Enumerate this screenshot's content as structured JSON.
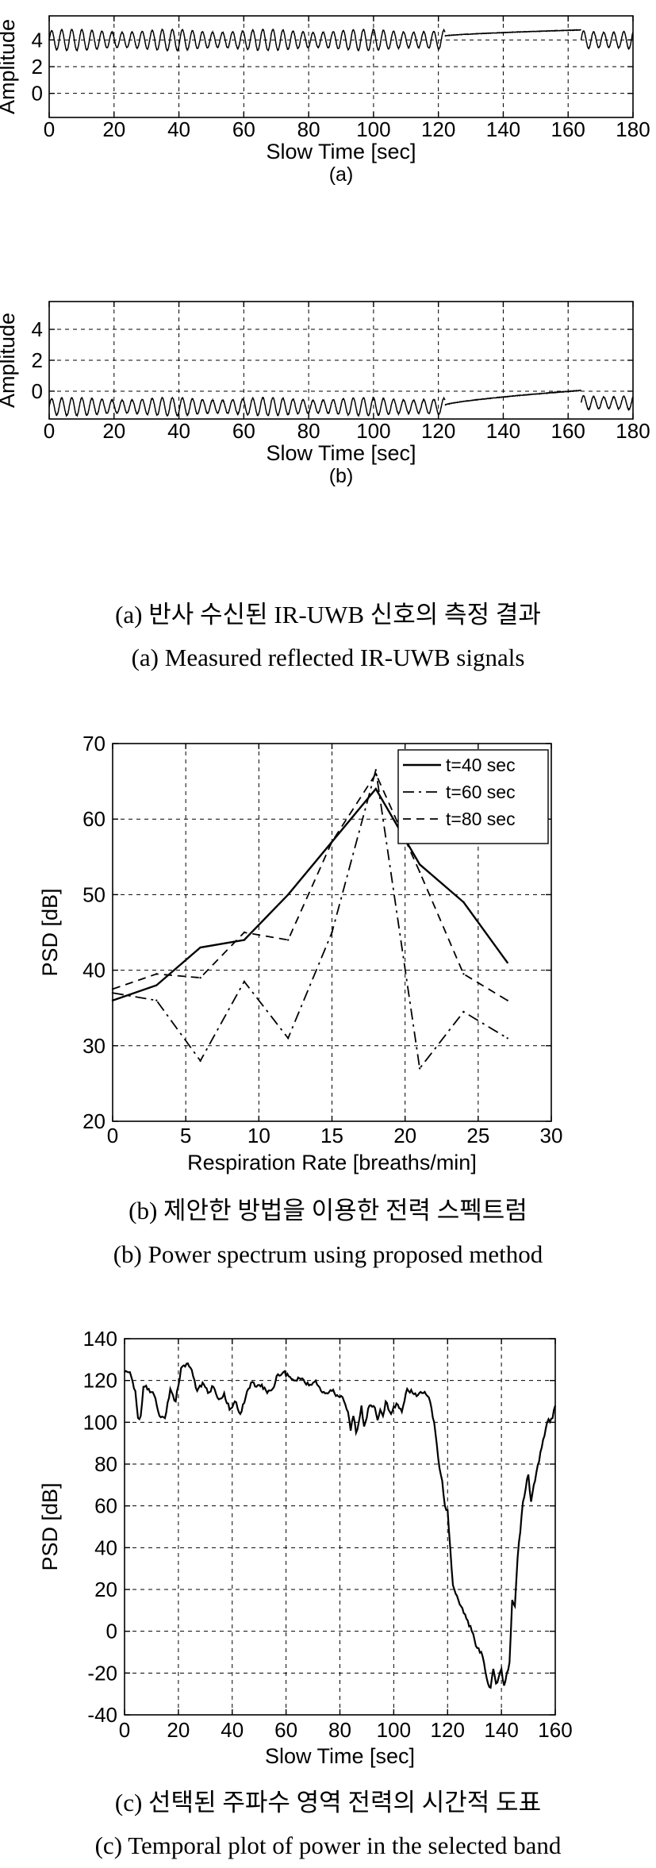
{
  "captions": {
    "a_ko": "(a) 반사 수신된 IR-UWB 신호의 측정 결과",
    "a_en": "(a) Measured reflected IR-UWB signals",
    "b_ko": "(b) 제안한 방법을 이용한 전력 스펙트럼",
    "b_en": "(b) Power spectrum using proposed method",
    "c_ko": "(c) 선택된 주파수 영역 전력의 시간적 도표",
    "c_en": "(c) Temporal plot of power in the selected band"
  },
  "chart_data": [
    {
      "id": "a",
      "type": "line",
      "sublabel": "(a)",
      "xlabel": "Slow Time [sec]",
      "ylabel": "Amplitude",
      "xlim": [
        0,
        180
      ],
      "ylim": [
        -1.8,
        5.8
      ],
      "xticks": [
        0,
        20,
        40,
        60,
        80,
        100,
        120,
        140,
        160,
        180
      ],
      "yticks": [
        0,
        2,
        4
      ],
      "grid": true,
      "series": [
        {
          "segments": [
            {
              "kind": "oscillation",
              "t_start": 0,
              "t_end": 122,
              "period": 3.1,
              "center": 4.0,
              "amplitude": 0.75
            },
            {
              "kind": "drift",
              "t_start": 122,
              "t_end": 164,
              "v_start": 4.3,
              "v_end": 4.75
            },
            {
              "kind": "oscillation",
              "t_start": 164,
              "t_end": 180,
              "period": 3.1,
              "center": 4.0,
              "amplitude": 0.75
            }
          ]
        }
      ]
    },
    {
      "id": "b",
      "type": "line",
      "sublabel": "(b)",
      "xlabel": "Slow Time [sec]",
      "ylabel": "Amplitude",
      "xlim": [
        0,
        180
      ],
      "ylim": [
        -1.8,
        5.8
      ],
      "xticks": [
        0,
        20,
        40,
        60,
        80,
        100,
        120,
        140,
        160,
        180
      ],
      "yticks": [
        0,
        2,
        4
      ],
      "grid": true,
      "series": [
        {
          "segments": [
            {
              "kind": "oscillation",
              "t_start": 0,
              "t_end": 122,
              "period": 3.1,
              "center": -1.0,
              "amplitude": 0.55
            },
            {
              "kind": "drift",
              "t_start": 122,
              "t_end": 164,
              "v_start": -0.9,
              "v_end": 0.05
            },
            {
              "kind": "oscillation",
              "t_start": 164,
              "t_end": 180,
              "period": 3.1,
              "center": -0.75,
              "amplitude": 0.5
            }
          ]
        }
      ]
    },
    {
      "id": "psd",
      "type": "line",
      "xlabel": "Respiration Rate [breaths/min]",
      "ylabel": "PSD [dB]",
      "xlim": [
        0,
        30
      ],
      "ylim": [
        20,
        70
      ],
      "xticks": [
        0,
        5,
        10,
        15,
        20,
        25,
        30
      ],
      "yticks": [
        20,
        30,
        40,
        50,
        60,
        70
      ],
      "grid": true,
      "legend": "top-right",
      "x": [
        0,
        3,
        6,
        9,
        12,
        15,
        18,
        21,
        24,
        27
      ],
      "series": [
        {
          "name": "t=40 sec",
          "dash": "solid",
          "values": [
            36,
            38,
            43,
            44,
            50,
            57,
            64,
            54,
            49,
            41
          ]
        },
        {
          "name": "t=60 sec",
          "dash": "dashdot",
          "values": [
            37,
            36,
            28,
            38.5,
            31,
            45,
            66.5,
            27,
            34.5,
            31
          ]
        },
        {
          "name": "t=80 sec",
          "dash": "dashed",
          "values": [
            37.5,
            39.5,
            39,
            45,
            44,
            57,
            66,
            53,
            39.5,
            36
          ]
        }
      ]
    },
    {
      "id": "c",
      "type": "line",
      "xlabel": "Slow Time [sec]",
      "ylabel": "PSD [dB]",
      "xlim": [
        0,
        160
      ],
      "ylim": [
        -40,
        140
      ],
      "xticks": [
        0,
        20,
        40,
        60,
        80,
        100,
        120,
        140,
        160
      ],
      "yticks": [
        -40,
        -20,
        0,
        20,
        40,
        60,
        80,
        100,
        120,
        140
      ],
      "grid": true,
      "series": [
        {
          "x": [
            0,
            2,
            4,
            5,
            6,
            7,
            9,
            11,
            13,
            15,
            17,
            19,
            21,
            23,
            25,
            27,
            29,
            31,
            33,
            35,
            37,
            39,
            41,
            43,
            45,
            47,
            49,
            51,
            53,
            55,
            57,
            59,
            61,
            63,
            65,
            67,
            69,
            71,
            73,
            75,
            77,
            79,
            81,
            83,
            84,
            85,
            86,
            87,
            88,
            89,
            91,
            93,
            94,
            95,
            96,
            97,
            99,
            101,
            103,
            105,
            107,
            109,
            111,
            113,
            115,
            117,
            118,
            119,
            120,
            121,
            122,
            123,
            124,
            125,
            127,
            129,
            131,
            133,
            135,
            136,
            137,
            138,
            139,
            140,
            141,
            142,
            143,
            144,
            145,
            146,
            148,
            150,
            151,
            152,
            153,
            155,
            157,
            159,
            160
          ],
          "values": [
            124,
            124,
            115,
            102,
            103,
            117,
            116,
            113,
            103,
            102,
            116,
            110,
            126,
            128,
            125,
            115,
            119,
            114,
            117,
            111,
            114,
            106,
            110,
            104,
            112,
            119,
            117,
            118,
            114,
            116,
            123,
            124,
            122,
            120,
            121,
            119,
            118,
            120,
            115,
            114,
            115,
            113,
            112,
            105,
            96,
            103,
            95,
            100,
            108,
            98,
            108,
            107,
            101,
            106,
            103,
            110,
            104,
            109,
            105,
            116,
            114,
            113,
            114,
            112,
            100,
            78,
            72,
            60,
            58,
            40,
            22,
            18,
            15,
            12,
            6,
            0,
            -8,
            -12,
            -25,
            -27,
            -18,
            -25,
            -22,
            -18,
            -26,
            -20,
            -15,
            15,
            12,
            35,
            62,
            75,
            62,
            70,
            76,
            88,
            100,
            102,
            108
          ]
        }
      ]
    }
  ]
}
